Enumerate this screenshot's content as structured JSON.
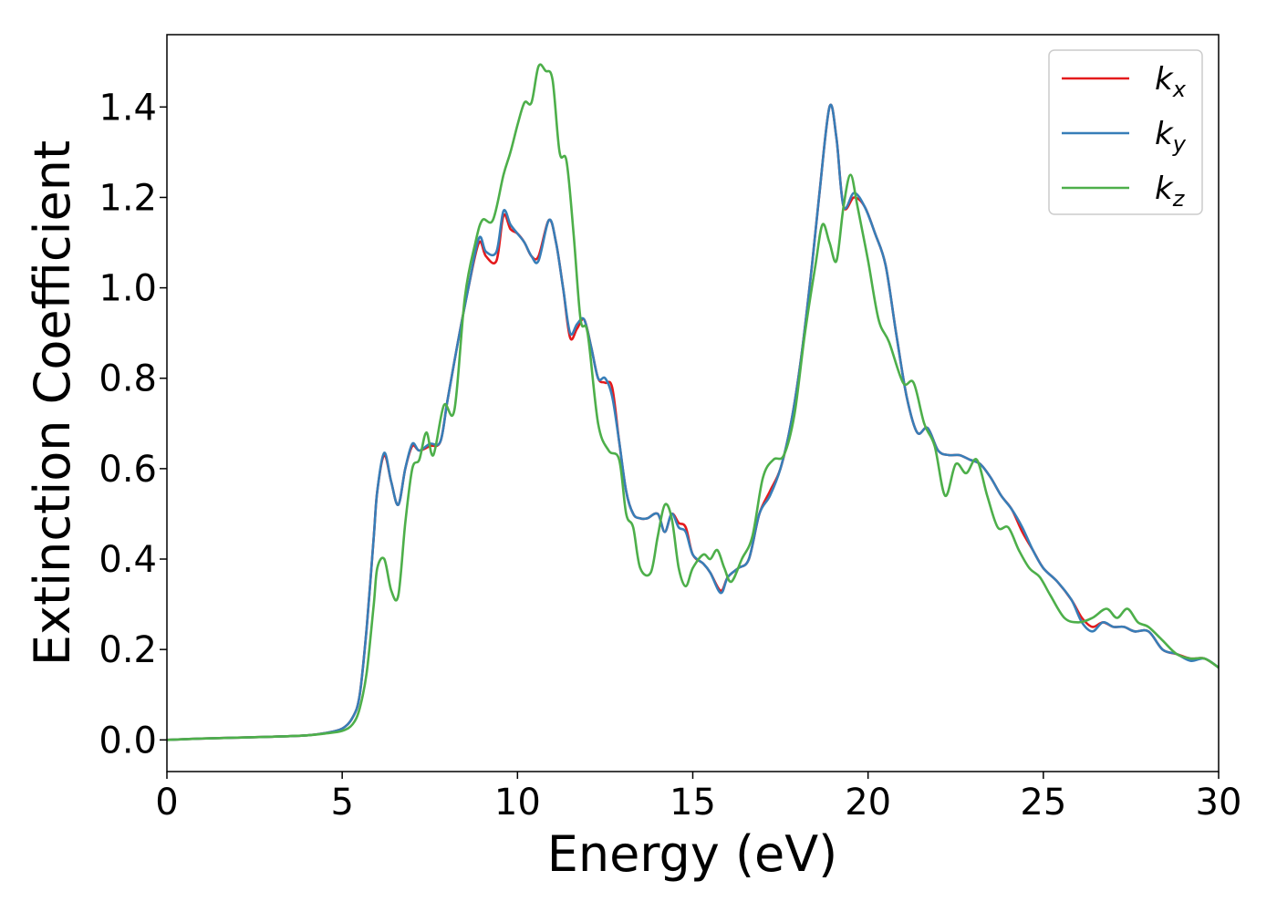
{
  "chart_data": {
    "type": "line",
    "xlabel": "Energy (eV)",
    "ylabel": "Extinction Coefficient",
    "xlim": [
      0,
      30
    ],
    "ylim": [
      -0.07,
      1.56
    ],
    "xticks": [
      0,
      5,
      10,
      15,
      20,
      25,
      30
    ],
    "yticks": [
      0.0,
      0.2,
      0.4,
      0.6,
      0.8,
      1.0,
      1.2,
      1.4
    ],
    "grid": false,
    "legend": "top-right",
    "series": [
      {
        "name": "k",
        "subscript": "x",
        "color": "#e41a1c",
        "x": [
          0,
          1,
          2,
          3,
          4,
          4.5,
          5,
          5.3,
          5.5,
          5.7,
          5.9,
          6.0,
          6.2,
          6.4,
          6.6,
          6.8,
          7.0,
          7.2,
          7.5,
          7.8,
          8.0,
          8.3,
          8.6,
          8.9,
          9.1,
          9.4,
          9.6,
          9.8,
          10.0,
          10.2,
          10.4,
          10.6,
          10.9,
          11.1,
          11.3,
          11.5,
          11.7,
          11.9,
          12.1,
          12.3,
          12.5,
          12.7,
          12.9,
          13.1,
          13.3,
          13.5,
          13.7,
          14.0,
          14.2,
          14.4,
          14.6,
          14.8,
          15.0,
          15.3,
          15.5,
          15.8,
          16.0,
          16.3,
          16.6,
          16.9,
          17.2,
          17.5,
          17.8,
          18.1,
          18.4,
          18.6,
          18.9,
          19.1,
          19.3,
          19.6,
          19.9,
          20.2,
          20.5,
          20.8,
          21.1,
          21.4,
          21.7,
          22.0,
          22.3,
          22.6,
          22.9,
          23.2,
          23.5,
          23.8,
          24.1,
          24.4,
          24.7,
          25.0,
          25.4,
          25.8,
          26.1,
          26.4,
          26.7,
          27.0,
          27.3,
          27.6,
          28.0,
          28.4,
          28.8,
          29.2,
          29.6,
          30.0
        ],
        "y": [
          0.0,
          0.003,
          0.005,
          0.007,
          0.01,
          0.015,
          0.025,
          0.05,
          0.1,
          0.25,
          0.45,
          0.55,
          0.63,
          0.57,
          0.52,
          0.6,
          0.65,
          0.64,
          0.65,
          0.66,
          0.75,
          0.88,
          1.0,
          1.1,
          1.07,
          1.06,
          1.16,
          1.13,
          1.12,
          1.1,
          1.07,
          1.07,
          1.15,
          1.1,
          1.0,
          0.89,
          0.91,
          0.93,
          0.87,
          0.8,
          0.79,
          0.78,
          0.66,
          0.55,
          0.5,
          0.49,
          0.49,
          0.5,
          0.46,
          0.5,
          0.48,
          0.47,
          0.41,
          0.39,
          0.37,
          0.33,
          0.36,
          0.38,
          0.4,
          0.5,
          0.55,
          0.6,
          0.7,
          0.85,
          1.05,
          1.2,
          1.4,
          1.33,
          1.18,
          1.2,
          1.18,
          1.12,
          1.05,
          0.9,
          0.76,
          0.68,
          0.69,
          0.64,
          0.63,
          0.63,
          0.62,
          0.61,
          0.58,
          0.54,
          0.51,
          0.46,
          0.42,
          0.38,
          0.35,
          0.31,
          0.27,
          0.25,
          0.26,
          0.25,
          0.25,
          0.24,
          0.24,
          0.2,
          0.19,
          0.18,
          0.18,
          0.16
        ]
      },
      {
        "name": "k",
        "subscript": "y",
        "color": "#377eb8",
        "x": [
          0,
          1,
          2,
          3,
          4,
          4.5,
          5,
          5.3,
          5.5,
          5.7,
          5.9,
          6.0,
          6.2,
          6.4,
          6.6,
          6.8,
          7.0,
          7.2,
          7.5,
          7.8,
          8.0,
          8.3,
          8.6,
          8.9,
          9.1,
          9.4,
          9.6,
          9.8,
          10.0,
          10.2,
          10.4,
          10.6,
          10.9,
          11.1,
          11.3,
          11.5,
          11.7,
          11.9,
          12.1,
          12.3,
          12.5,
          12.7,
          12.9,
          13.1,
          13.3,
          13.5,
          13.7,
          14.0,
          14.2,
          14.4,
          14.6,
          14.8,
          15.0,
          15.3,
          15.5,
          15.8,
          16.0,
          16.3,
          16.6,
          16.9,
          17.2,
          17.5,
          17.8,
          18.1,
          18.4,
          18.6,
          18.9,
          19.1,
          19.3,
          19.6,
          19.9,
          20.2,
          20.5,
          20.8,
          21.1,
          21.4,
          21.7,
          22.0,
          22.3,
          22.6,
          22.9,
          23.2,
          23.5,
          23.8,
          24.1,
          24.4,
          24.7,
          25.0,
          25.4,
          25.8,
          26.1,
          26.4,
          26.7,
          27.0,
          27.3,
          27.6,
          28.0,
          28.4,
          28.8,
          29.2,
          29.6,
          30.0
        ],
        "y": [
          0.0,
          0.003,
          0.005,
          0.007,
          0.01,
          0.015,
          0.025,
          0.05,
          0.1,
          0.25,
          0.45,
          0.55,
          0.635,
          0.57,
          0.52,
          0.6,
          0.655,
          0.64,
          0.655,
          0.66,
          0.75,
          0.88,
          1.0,
          1.11,
          1.08,
          1.08,
          1.17,
          1.14,
          1.12,
          1.1,
          1.07,
          1.06,
          1.15,
          1.1,
          1.0,
          0.9,
          0.92,
          0.93,
          0.87,
          0.8,
          0.8,
          0.76,
          0.66,
          0.55,
          0.5,
          0.49,
          0.49,
          0.5,
          0.46,
          0.5,
          0.47,
          0.46,
          0.41,
          0.39,
          0.37,
          0.325,
          0.36,
          0.38,
          0.4,
          0.5,
          0.54,
          0.6,
          0.7,
          0.85,
          1.05,
          1.2,
          1.4,
          1.33,
          1.18,
          1.21,
          1.18,
          1.12,
          1.05,
          0.9,
          0.76,
          0.68,
          0.69,
          0.64,
          0.63,
          0.63,
          0.62,
          0.61,
          0.58,
          0.54,
          0.51,
          0.47,
          0.42,
          0.38,
          0.35,
          0.31,
          0.26,
          0.24,
          0.26,
          0.25,
          0.25,
          0.24,
          0.24,
          0.2,
          0.19,
          0.175,
          0.18,
          0.16
        ]
      },
      {
        "name": "k",
        "subscript": "z",
        "color": "#4daf4a",
        "x": [
          0,
          1,
          2,
          3,
          4,
          4.5,
          5,
          5.3,
          5.5,
          5.7,
          5.9,
          6.0,
          6.2,
          6.4,
          6.6,
          6.8,
          7.0,
          7.2,
          7.4,
          7.6,
          7.9,
          8.2,
          8.5,
          8.8,
          9.0,
          9.3,
          9.6,
          9.8,
          10.0,
          10.2,
          10.4,
          10.6,
          10.8,
          11.0,
          11.2,
          11.4,
          11.6,
          11.8,
          12.0,
          12.3,
          12.6,
          12.9,
          13.1,
          13.3,
          13.5,
          13.8,
          14.0,
          14.2,
          14.4,
          14.6,
          14.8,
          15.0,
          15.3,
          15.5,
          15.7,
          15.9,
          16.1,
          16.4,
          16.7,
          17.0,
          17.3,
          17.6,
          17.9,
          18.2,
          18.5,
          18.7,
          18.9,
          19.1,
          19.3,
          19.5,
          19.7,
          20.0,
          20.3,
          20.6,
          21.0,
          21.3,
          21.6,
          21.9,
          22.2,
          22.5,
          22.8,
          23.1,
          23.4,
          23.7,
          24.0,
          24.3,
          24.6,
          24.9,
          25.2,
          25.6,
          26.0,
          26.4,
          26.8,
          27.1,
          27.4,
          27.7,
          28.0,
          28.4,
          28.8,
          29.2,
          29.6,
          30.0
        ],
        "y": [
          0.0,
          0.003,
          0.005,
          0.007,
          0.01,
          0.014,
          0.02,
          0.035,
          0.07,
          0.15,
          0.3,
          0.38,
          0.4,
          0.33,
          0.32,
          0.48,
          0.6,
          0.62,
          0.68,
          0.63,
          0.74,
          0.73,
          0.98,
          1.1,
          1.15,
          1.15,
          1.25,
          1.3,
          1.36,
          1.41,
          1.41,
          1.49,
          1.48,
          1.46,
          1.3,
          1.28,
          1.12,
          0.93,
          0.9,
          0.7,
          0.64,
          0.62,
          0.5,
          0.47,
          0.38,
          0.37,
          0.45,
          0.52,
          0.49,
          0.38,
          0.34,
          0.38,
          0.41,
          0.4,
          0.42,
          0.38,
          0.35,
          0.4,
          0.45,
          0.58,
          0.62,
          0.63,
          0.72,
          0.9,
          1.05,
          1.14,
          1.1,
          1.06,
          1.18,
          1.25,
          1.18,
          1.06,
          0.93,
          0.88,
          0.79,
          0.79,
          0.7,
          0.65,
          0.54,
          0.61,
          0.59,
          0.62,
          0.54,
          0.47,
          0.47,
          0.42,
          0.38,
          0.36,
          0.32,
          0.27,
          0.26,
          0.27,
          0.29,
          0.27,
          0.29,
          0.26,
          0.25,
          0.22,
          0.19,
          0.18,
          0.18,
          0.16
        ]
      }
    ]
  }
}
